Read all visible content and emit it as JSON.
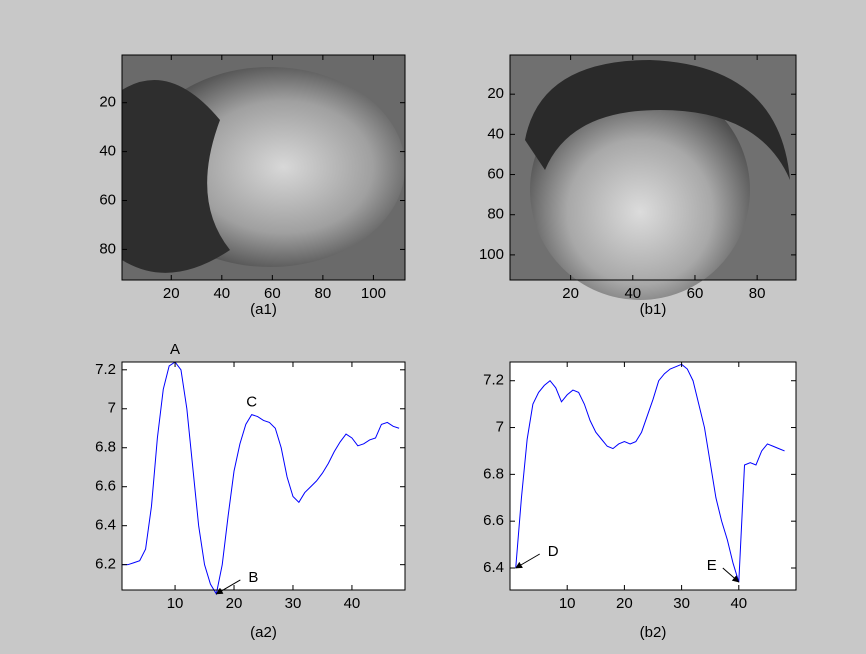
{
  "chart_data": [
    {
      "type": "image",
      "xlabel": "(a1)",
      "xlim": [
        0.5,
        112.5
      ],
      "ylim": [
        0.5,
        92.5
      ],
      "y_reversed": true,
      "xticks": [
        20,
        40,
        60,
        80,
        100
      ],
      "yticks": [
        20,
        40,
        60,
        80
      ]
    },
    {
      "type": "image",
      "xlabel": "(b1)",
      "xlim": [
        0.5,
        92.5
      ],
      "ylim": [
        0.5,
        112.5
      ],
      "y_reversed": true,
      "xticks": [
        20,
        40,
        60,
        80
      ],
      "yticks": [
        20,
        40,
        60,
        80,
        100
      ]
    },
    {
      "type": "line",
      "xlabel": "(a2)",
      "xlim": [
        1,
        49
      ],
      "ylim": [
        6.07,
        7.24
      ],
      "xticks": [
        10,
        20,
        30,
        40
      ],
      "yticks": [
        6.2,
        6.4,
        6.6,
        6.8,
        7,
        7.2
      ],
      "x": [
        1,
        2,
        3,
        4,
        5,
        6,
        7,
        8,
        9,
        10,
        11,
        12,
        13,
        14,
        15,
        16,
        17,
        18,
        19,
        20,
        21,
        22,
        23,
        24,
        25,
        26,
        27,
        28,
        29,
        30,
        31,
        32,
        33,
        34,
        35,
        36,
        37,
        38,
        39,
        40,
        41,
        42,
        43,
        44,
        45,
        46,
        47,
        48
      ],
      "series": [
        {
          "color": "#0000ff",
          "values": [
            6.2,
            6.2,
            6.21,
            6.22,
            6.28,
            6.5,
            6.85,
            7.1,
            7.22,
            7.24,
            7.2,
            7.0,
            6.7,
            6.4,
            6.2,
            6.1,
            6.05,
            6.2,
            6.45,
            6.68,
            6.82,
            6.92,
            6.97,
            6.96,
            6.94,
            6.93,
            6.9,
            6.8,
            6.65,
            6.55,
            6.52,
            6.57,
            6.6,
            6.63,
            6.67,
            6.72,
            6.78,
            6.83,
            6.87,
            6.85,
            6.81,
            6.82,
            6.84,
            6.85,
            6.92,
            6.93,
            6.91,
            6.9
          ]
        }
      ],
      "annotations": [
        {
          "text": "A",
          "x": 10,
          "y": 7.24,
          "arrow": false
        },
        {
          "text": "B",
          "x": 17,
          "y": 6.05,
          "arrow": true
        },
        {
          "text": "C",
          "x": 23,
          "y": 6.97,
          "arrow": false
        }
      ]
    },
    {
      "type": "line",
      "xlabel": "(b2)",
      "xlim": [
        0,
        50
      ],
      "ylim": [
        6.306,
        7.28
      ],
      "xticks": [
        10,
        20,
        30,
        40
      ],
      "yticks": [
        6.4,
        6.6,
        6.8,
        7,
        7.2
      ],
      "x": [
        1,
        2,
        3,
        4,
        5,
        6,
        7,
        8,
        9,
        10,
        11,
        12,
        13,
        14,
        15,
        16,
        17,
        18,
        19,
        20,
        21,
        22,
        23,
        24,
        25,
        26,
        27,
        28,
        29,
        30,
        31,
        32,
        33,
        34,
        35,
        36,
        37,
        38,
        39,
        40,
        41,
        42,
        43,
        44,
        45,
        46,
        47,
        48
      ],
      "series": [
        {
          "color": "#0000ff",
          "values": [
            6.4,
            6.7,
            6.95,
            7.1,
            7.15,
            7.18,
            7.2,
            7.17,
            7.11,
            7.14,
            7.16,
            7.15,
            7.1,
            7.03,
            6.98,
            6.95,
            6.92,
            6.91,
            6.93,
            6.94,
            6.93,
            6.94,
            6.98,
            7.05,
            7.12,
            7.2,
            7.23,
            7.25,
            7.26,
            7.27,
            7.25,
            7.2,
            7.1,
            7.0,
            6.85,
            6.7,
            6.6,
            6.52,
            6.42,
            6.34,
            6.84,
            6.85,
            6.84,
            6.9,
            6.93,
            6.92,
            6.91,
            6.9
          ]
        }
      ],
      "annotations": [
        {
          "text": "D",
          "x": 1,
          "y": 6.4,
          "arrow": true
        },
        {
          "text": "E",
          "x": 40,
          "y": 6.34,
          "arrow": true
        }
      ]
    }
  ]
}
